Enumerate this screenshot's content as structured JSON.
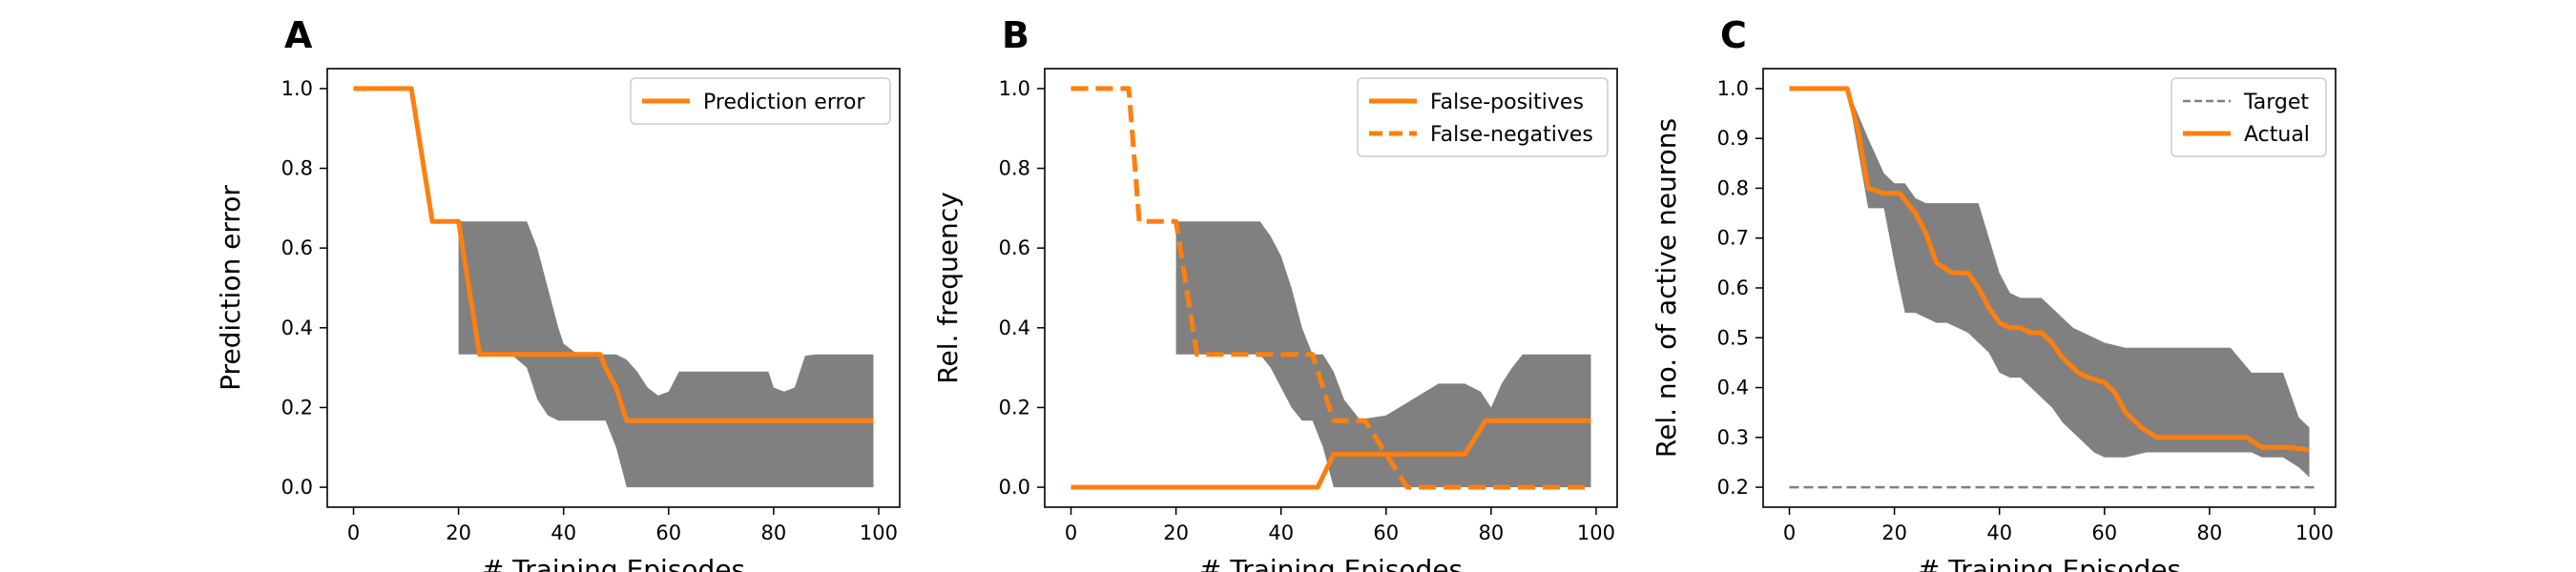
{
  "colors": {
    "actual": "#ff7f0e",
    "band": "#808080",
    "target": "#808080",
    "axis": "#000000"
  },
  "chart_data": [
    {
      "panel": "A",
      "type": "line",
      "xlabel": "# Training Episodes",
      "ylabel": "Prediction error",
      "xlim": [
        -5,
        104
      ],
      "ylim": [
        -0.05,
        1.05
      ],
      "xticks": [
        0,
        20,
        40,
        60,
        80,
        100
      ],
      "yticks": [
        0.0,
        0.2,
        0.4,
        0.6,
        0.8,
        1.0
      ],
      "ytick_decimals": 1,
      "legend_position": "top-right",
      "legend": [
        {
          "label": "Prediction error",
          "style": "solid",
          "color": "#ff7f0e"
        }
      ],
      "series": [
        {
          "name": "Prediction error",
          "style": "solid",
          "color": "#ff7f0e",
          "x": [
            0,
            11,
            15,
            20,
            24,
            30,
            36,
            40,
            44,
            47,
            48,
            50,
            52,
            60,
            80,
            99
          ],
          "y": [
            1.0,
            1.0,
            0.667,
            0.667,
            0.333,
            0.333,
            0.333,
            0.333,
            0.333,
            0.333,
            0.3,
            0.25,
            0.167,
            0.167,
            0.167,
            0.167
          ]
        }
      ],
      "band": {
        "x": [
          20,
          24,
          30,
          33,
          35,
          37,
          39,
          40,
          42,
          44,
          46,
          48,
          50,
          52,
          54,
          56,
          58,
          60,
          62,
          65,
          70,
          75,
          79,
          80,
          82,
          84,
          86,
          88,
          90,
          95,
          99
        ],
        "lower": [
          0.333,
          0.333,
          0.333,
          0.3,
          0.22,
          0.18,
          0.167,
          0.167,
          0.167,
          0.167,
          0.167,
          0.167,
          0.1,
          0.0,
          0.0,
          0.0,
          0.0,
          0.0,
          0.0,
          0.0,
          0.0,
          0.0,
          0.0,
          0.0,
          0.0,
          0.0,
          0.0,
          0.0,
          0.0,
          0.0,
          0.0
        ],
        "upper": [
          0.667,
          0.667,
          0.667,
          0.667,
          0.6,
          0.5,
          0.4,
          0.36,
          0.34,
          0.333,
          0.333,
          0.333,
          0.333,
          0.32,
          0.29,
          0.25,
          0.23,
          0.24,
          0.29,
          0.29,
          0.29,
          0.29,
          0.29,
          0.25,
          0.24,
          0.25,
          0.33,
          0.333,
          0.333,
          0.333,
          0.333
        ]
      }
    },
    {
      "panel": "B",
      "type": "line",
      "xlabel": "# Training Episodes",
      "ylabel": "Rel. frequency",
      "xlim": [
        -5,
        104
      ],
      "ylim": [
        -0.05,
        1.05
      ],
      "xticks": [
        0,
        20,
        40,
        60,
        80,
        100
      ],
      "yticks": [
        0.0,
        0.2,
        0.4,
        0.6,
        0.8,
        1.0
      ],
      "ytick_decimals": 1,
      "legend_position": "top-right",
      "legend": [
        {
          "label": "False-positives",
          "style": "solid",
          "color": "#ff7f0e"
        },
        {
          "label": "False-negatives",
          "style": "dashed",
          "color": "#ff7f0e"
        }
      ],
      "series": [
        {
          "name": "False-positives",
          "style": "solid",
          "color": "#ff7f0e",
          "x": [
            0,
            20,
            40,
            47,
            50,
            60,
            70,
            75,
            79,
            85,
            99
          ],
          "y": [
            0.0,
            0.0,
            0.0,
            0.0,
            0.083,
            0.083,
            0.083,
            0.083,
            0.167,
            0.167,
            0.167
          ]
        },
        {
          "name": "False-negatives",
          "style": "dashed",
          "color": "#ff7f0e",
          "x": [
            0,
            11,
            13,
            20,
            22,
            24,
            40,
            46,
            48,
            50,
            52,
            54,
            56,
            58,
            60,
            62,
            64,
            66,
            80,
            99
          ],
          "y": [
            1.0,
            1.0,
            0.667,
            0.667,
            0.5,
            0.333,
            0.333,
            0.333,
            0.25,
            0.167,
            0.167,
            0.167,
            0.167,
            0.125,
            0.083,
            0.042,
            0.0,
            0.0,
            0.0,
            0.0
          ]
        }
      ],
      "band": {
        "x": [
          20,
          24,
          30,
          36,
          38,
          40,
          42,
          44,
          46,
          48,
          50,
          52,
          55,
          60,
          70,
          75,
          78,
          80,
          82,
          84,
          86,
          90,
          95,
          99
        ],
        "lower": [
          0.333,
          0.333,
          0.333,
          0.333,
          0.3,
          0.25,
          0.2,
          0.167,
          0.167,
          0.1,
          0.0,
          0.0,
          0.0,
          0.0,
          0.0,
          0.0,
          0.0,
          0.0,
          0.0,
          0.0,
          0.0,
          0.0,
          0.0,
          0.0
        ],
        "upper": [
          0.667,
          0.667,
          0.667,
          0.667,
          0.63,
          0.58,
          0.5,
          0.4,
          0.333,
          0.333,
          0.29,
          0.22,
          0.17,
          0.18,
          0.26,
          0.26,
          0.24,
          0.2,
          0.26,
          0.3,
          0.333,
          0.333,
          0.333,
          0.333
        ]
      }
    },
    {
      "panel": "C",
      "type": "line",
      "xlabel": "# Training Episodes",
      "ylabel": "Rel. no. of active neurons",
      "xlim": [
        -5,
        104
      ],
      "ylim": [
        0.16,
        1.04
      ],
      "xticks": [
        0,
        20,
        40,
        60,
        80,
        100
      ],
      "yticks": [
        0.2,
        0.3,
        0.4,
        0.5,
        0.6,
        0.7,
        0.8,
        0.9,
        1.0
      ],
      "ytick_decimals": 1,
      "legend_position": "top-right",
      "legend": [
        {
          "label": "Target",
          "style": "dashed-thin",
          "color": "#808080"
        },
        {
          "label": "Actual",
          "style": "solid",
          "color": "#ff7f0e"
        }
      ],
      "series": [
        {
          "name": "Target",
          "style": "dashed-thin",
          "color": "#808080",
          "x": [
            0,
            100
          ],
          "y": [
            0.2,
            0.2
          ]
        },
        {
          "name": "Actual",
          "style": "solid",
          "color": "#ff7f0e",
          "x": [
            0,
            11,
            13,
            15,
            18,
            21,
            24,
            26,
            28,
            31,
            34,
            36,
            38,
            40,
            42,
            44,
            46,
            48,
            50,
            52,
            55,
            57,
            60,
            62,
            64,
            67,
            70,
            75,
            80,
            87,
            90,
            95,
            99
          ],
          "y": [
            1.0,
            1.0,
            0.92,
            0.8,
            0.79,
            0.79,
            0.75,
            0.71,
            0.65,
            0.63,
            0.63,
            0.6,
            0.56,
            0.53,
            0.52,
            0.52,
            0.51,
            0.51,
            0.49,
            0.46,
            0.43,
            0.42,
            0.41,
            0.39,
            0.35,
            0.32,
            0.3,
            0.3,
            0.3,
            0.3,
            0.28,
            0.28,
            0.275
          ]
        }
      ],
      "band": {
        "x": [
          11,
          13,
          15,
          18,
          20,
          22,
          24,
          26,
          28,
          30,
          32,
          34,
          36,
          38,
          40,
          42,
          44,
          46,
          48,
          50,
          52,
          54,
          56,
          58,
          60,
          64,
          68,
          72,
          78,
          84,
          88,
          90,
          94,
          97,
          99
        ],
        "lower": [
          1.0,
          0.88,
          0.76,
          0.76,
          0.65,
          0.55,
          0.55,
          0.54,
          0.53,
          0.53,
          0.52,
          0.51,
          0.49,
          0.47,
          0.43,
          0.42,
          0.42,
          0.4,
          0.38,
          0.36,
          0.33,
          0.31,
          0.29,
          0.27,
          0.26,
          0.26,
          0.27,
          0.27,
          0.27,
          0.27,
          0.27,
          0.26,
          0.26,
          0.24,
          0.22
        ],
        "upper": [
          1.0,
          0.95,
          0.9,
          0.83,
          0.81,
          0.81,
          0.78,
          0.77,
          0.77,
          0.77,
          0.77,
          0.77,
          0.77,
          0.7,
          0.63,
          0.59,
          0.58,
          0.58,
          0.58,
          0.56,
          0.54,
          0.52,
          0.51,
          0.5,
          0.49,
          0.48,
          0.48,
          0.48,
          0.48,
          0.48,
          0.43,
          0.43,
          0.43,
          0.34,
          0.32
        ]
      }
    }
  ]
}
